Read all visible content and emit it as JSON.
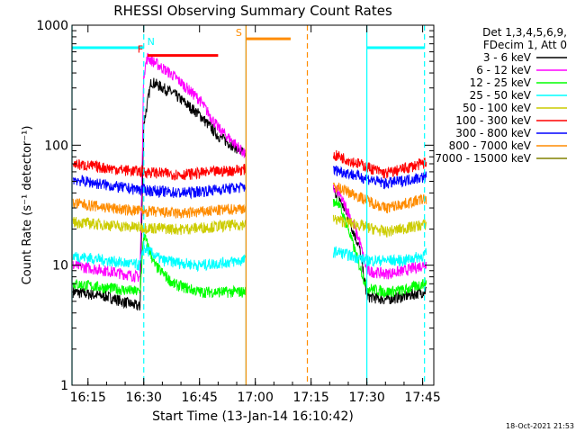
{
  "chart_data": {
    "type": "line",
    "title": "RHESSI Observing Summary Count Rates",
    "xlabel": "Start Time (13-Jan-14 16:10:42)",
    "ylabel": "Count Rate (s⁻¹ detector⁻¹)",
    "yscale": "log",
    "ylim": [
      1,
      1000
    ],
    "xlim": [
      "16:10:42",
      "17:48:00"
    ],
    "x_ticks": [
      "16:15",
      "16:30",
      "16:45",
      "17:00",
      "17:15",
      "17:30",
      "17:45"
    ],
    "y_ticks": [
      "1",
      "10",
      "100",
      "1000"
    ],
    "legend_header": [
      "Det 1,3,4,5,6,9,",
      "FDecim 1, Att 0"
    ],
    "legend_position": "right",
    "timestamp": "18-Oct-2021 21:53",
    "gap": [
      "16:57:30",
      "17:21:00"
    ],
    "series": [
      {
        "name": "3 - 6 keV",
        "color": "#000000",
        "times": [
          "16:11",
          "16:20",
          "16:29",
          "16:30",
          "16:32",
          "16:38",
          "16:45",
          "16:50",
          "16:55",
          "16:57",
          "17:22",
          "17:25",
          "17:28",
          "17:30",
          "17:35",
          "17:40",
          "17:45",
          "17:46"
        ],
        "values": [
          6,
          5.5,
          4.5,
          150,
          340,
          270,
          180,
          120,
          95,
          85,
          40,
          25,
          14,
          5.5,
          5.2,
          5.5,
          6,
          6.2
        ]
      },
      {
        "name": "6 - 12 keV",
        "color": "#ff00ff",
        "times": [
          "16:11",
          "16:20",
          "16:29",
          "16:30",
          "16:31",
          "16:38",
          "16:45",
          "16:50",
          "16:55",
          "16:57",
          "17:22",
          "17:25",
          "17:28",
          "17:30",
          "17:35",
          "17:40",
          "17:45",
          "17:46"
        ],
        "values": [
          10,
          9,
          8,
          400,
          540,
          380,
          240,
          140,
          100,
          85,
          42,
          28,
          16,
          9,
          8.5,
          9,
          10,
          10.5
        ]
      },
      {
        "name": "12 - 25 keV",
        "color": "#00ff00",
        "times": [
          "16:11",
          "16:20",
          "16:29",
          "16:30",
          "16:33",
          "16:38",
          "16:45",
          "16:50",
          "16:57",
          "17:22",
          "17:25",
          "17:28",
          "17:30",
          "17:35",
          "17:40",
          "17:45",
          "17:46"
        ],
        "values": [
          7,
          6.5,
          6,
          18,
          10,
          7,
          6,
          6,
          6,
          35,
          20,
          10,
          6.5,
          6,
          6.2,
          7,
          7.2
        ]
      },
      {
        "name": "25 - 50 keV",
        "color": "#00ffff",
        "times": [
          "16:11",
          "16:20",
          "16:29",
          "16:30",
          "16:35",
          "16:45",
          "16:57",
          "17:22",
          "17:30",
          "17:40",
          "17:45",
          "17:46"
        ],
        "values": [
          12,
          11,
          10,
          14,
          11,
          10,
          11,
          13,
          11,
          11,
          12,
          12.5
        ]
      },
      {
        "name": "50 - 100 keV",
        "color": "#cccc00",
        "times": [
          "16:11",
          "16:25",
          "16:40",
          "16:57",
          "17:22",
          "17:35",
          "17:46"
        ],
        "values": [
          23,
          21,
          20,
          22,
          24,
          19,
          22
        ]
      },
      {
        "name": "100 - 300 keV",
        "color": "#ff0000",
        "times": [
          "16:11",
          "16:25",
          "16:40",
          "16:57",
          "17:22",
          "17:35",
          "17:46"
        ],
        "values": [
          70,
          62,
          57,
          63,
          82,
          58,
          72
        ]
      },
      {
        "name": "300 - 800 keV",
        "color": "#0000ff",
        "times": [
          "16:11",
          "16:25",
          "16:40",
          "16:57",
          "17:22",
          "17:35",
          "17:46"
        ],
        "values": [
          52,
          44,
          40,
          45,
          62,
          48,
          55
        ]
      },
      {
        "name": "800 - 7000 keV",
        "color": "#ff8c00",
        "times": [
          "16:11",
          "16:25",
          "16:40",
          "16:57",
          "17:22",
          "17:35",
          "17:46"
        ],
        "values": [
          33,
          29,
          27,
          30,
          45,
          30,
          36
        ]
      },
      {
        "name": "7000 - 15000 keV",
        "color": "#808000",
        "times": [],
        "values": []
      }
    ],
    "annotations": [
      {
        "label": "N",
        "color": "#00ffff",
        "bars": [
          [
            "16:10:42",
            "16:30"
          ],
          [
            "17:30",
            "17:45:30"
          ]
        ],
        "value": 650,
        "vlines": [
          "16:30",
          "17:45:30"
        ],
        "solid_vlines": [
          "16:10:42",
          "16:57:30",
          "17:30"
        ]
      },
      {
        "label": "F",
        "color": "#ff0000",
        "bars": [
          [
            "16:31",
            "16:50"
          ]
        ],
        "value": 560
      },
      {
        "label": "S",
        "color": "#ff8c00",
        "bars": [
          [
            "16:57:30",
            "17:09:30"
          ]
        ],
        "value": 770,
        "vlines": [
          "17:14"
        ],
        "solid_vlines": [
          "16:57:30"
        ]
      }
    ]
  }
}
